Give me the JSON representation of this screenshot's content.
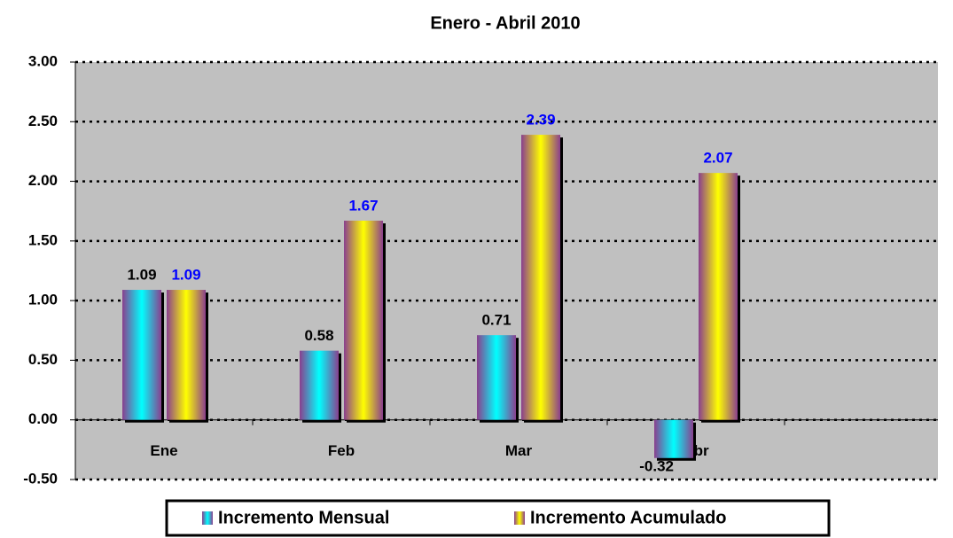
{
  "chart_data": {
    "type": "bar",
    "title": "Enero - Abril 2010",
    "categories": [
      "Ene",
      "Feb",
      "Mar",
      "Abr"
    ],
    "series": [
      {
        "name": "Incremento Mensual",
        "color": "#00ffff",
        "values": [
          1.09,
          0.58,
          0.71,
          -0.32
        ]
      },
      {
        "name": "Incremento Acumulado",
        "color": "#ffff00",
        "values": [
          1.09,
          1.67,
          2.39,
          2.07
        ]
      }
    ],
    "ylim": [
      -0.5,
      3.0
    ],
    "yticks": [
      {
        "value": -0.5,
        "label": "-0.50"
      },
      {
        "value": 0,
        "label": "0.00"
      },
      {
        "value": 0.5,
        "label": "0.50"
      },
      {
        "value": 1,
        "label": "1.00"
      },
      {
        "value": 1.5,
        "label": "1.50"
      },
      {
        "value": 2,
        "label": "2.00"
      },
      {
        "value": 2.5,
        "label": "2.50"
      },
      {
        "value": 3,
        "label": "3.00"
      }
    ],
    "grid": true
  }
}
